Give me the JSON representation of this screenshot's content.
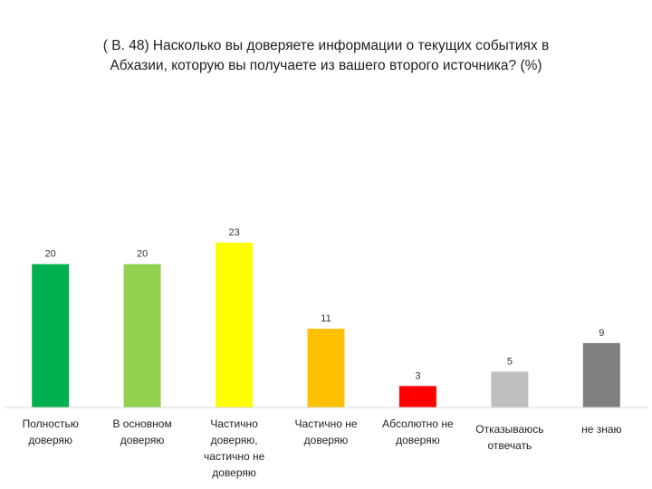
{
  "chart_data": {
    "type": "bar",
    "title_lines": [
      "( В. 48)  Насколько вы доверяете информации о текущих событиях в",
      "Абхазии, которую вы получаете из вашего второго источника? (%)"
    ],
    "categories": [
      [
        "Полностью",
        "доверяю"
      ],
      [
        "В основном",
        "доверяю"
      ],
      [
        "Частично",
        "доверяю,",
        "частично не",
        "доверяю"
      ],
      [
        "Частично не",
        "доверяю"
      ],
      [
        "Абсолютно не",
        "доверяю"
      ],
      [
        "Отказываюсь",
        "отвечать"
      ],
      [
        "не знаю"
      ]
    ],
    "values": [
      20,
      20,
      23,
      11,
      3,
      5,
      9
    ],
    "colors": [
      "#00b050",
      "#92d050",
      "#ffff00",
      "#ffc000",
      "#ff0000",
      "#bfbfbf",
      "#7f7f7f"
    ],
    "ylim": [
      0,
      23
    ],
    "grid": false,
    "legend": "none",
    "xlabel": "",
    "ylabel": ""
  }
}
